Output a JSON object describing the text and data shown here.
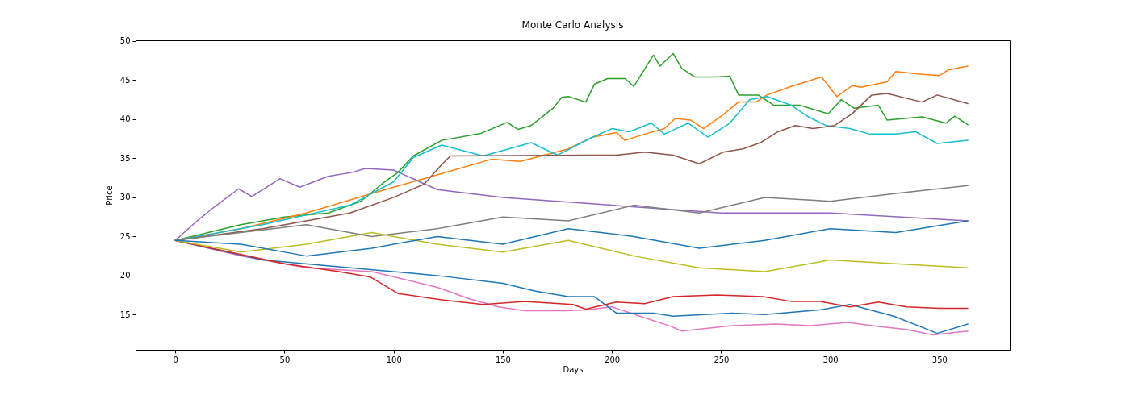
{
  "chart_data": {
    "type": "line",
    "title": "Monte Carlo Analysis",
    "xlabel": "Days",
    "ylabel": "Price",
    "xlim": [
      -18.2,
      382.2
    ],
    "xticks": [
      0,
      50,
      100,
      150,
      200,
      250,
      300,
      350
    ],
    "ylim": [
      10.5,
      50.1
    ],
    "yticks": [
      15,
      20,
      25,
      30,
      35,
      40,
      45,
      50
    ],
    "grid": false,
    "legend": false,
    "series": [
      {
        "color": "#2ca02c",
        "x": [
          0,
          15,
          30,
          50,
          70,
          85,
          95,
          102,
          109,
          122,
          140,
          152,
          157,
          163,
          173,
          177,
          180,
          188,
          192,
          198,
          206,
          210,
          219,
          222,
          228,
          232,
          238,
          248,
          254,
          258,
          267,
          274,
          286,
          299,
          305,
          311,
          322,
          326,
          342,
          353,
          357,
          363
        ],
        "values": [
          24.5,
          25.5,
          26.5,
          27.5,
          28,
          29.5,
          31.8,
          33.2,
          35.3,
          37.3,
          38.2,
          39.6,
          38.7,
          39.2,
          41.4,
          42.8,
          42.9,
          42.2,
          44.5,
          45.2,
          45.2,
          44.2,
          48.2,
          46.8,
          48.4,
          46.5,
          45.4,
          45.4,
          45.5,
          43.1,
          43.1,
          41.8,
          41.8,
          40.7,
          42.5,
          41.4,
          41.8,
          39.9,
          40.3,
          39.5,
          40.4,
          39.3
        ]
      },
      {
        "color": "#ff7f0e",
        "x": [
          0,
          30,
          60,
          90,
          115,
          145,
          158,
          180,
          191,
          202,
          206,
          215,
          224,
          229,
          236,
          242,
          250,
          258,
          266,
          271,
          282,
          296,
          303,
          310,
          314,
          326,
          330,
          340,
          350,
          354,
          363
        ],
        "values": [
          24.5,
          26,
          28,
          30.5,
          32.5,
          34.9,
          34.6,
          36.2,
          37.7,
          38.3,
          37.3,
          38.1,
          38.8,
          40.1,
          39.9,
          38.8,
          40.4,
          42.2,
          42.2,
          43.1,
          44.2,
          45.4,
          42.9,
          44.3,
          44.1,
          44.8,
          46.1,
          45.8,
          45.6,
          46.3,
          46.8
        ]
      },
      {
        "color": "#e377c2",
        "x": [
          0,
          30,
          60,
          90,
          120,
          135,
          148,
          160,
          179,
          188,
          200,
          215,
          227,
          232,
          255,
          275,
          291,
          308,
          322,
          335,
          347,
          363
        ],
        "values": [
          24.5,
          22.5,
          21,
          20.5,
          18.5,
          17,
          16,
          15.5,
          15.5,
          15.6,
          16,
          14.6,
          13.5,
          12.9,
          13.6,
          13.8,
          13.6,
          14,
          13.5,
          13.1,
          12.4,
          12.9
        ]
      },
      {
        "color": "#1f77b4",
        "x": [
          0,
          40,
          80,
          120,
          150,
          165,
          180,
          192,
          202,
          219,
          228,
          255,
          270,
          295,
          309,
          329,
          342,
          349,
          363
        ],
        "values": [
          24.5,
          22,
          21,
          20,
          19,
          18,
          17.3,
          17.3,
          15.2,
          15.2,
          14.8,
          15.2,
          15,
          15.6,
          16.3,
          14.8,
          13.4,
          12.6,
          13.8
        ]
      },
      {
        "color": "#d62728",
        "x": [
          0,
          25,
          50,
          75,
          89.5,
          102,
          122,
          141,
          160,
          182,
          188,
          202,
          215,
          228,
          248,
          269,
          282,
          295,
          309,
          322,
          335,
          350,
          363
        ],
        "values": [
          24.5,
          23,
          21.5,
          20.5,
          19.8,
          17.7,
          16.9,
          16.3,
          16.7,
          16.3,
          15.7,
          16.6,
          16.4,
          17.3,
          17.5,
          17.3,
          16.7,
          16.7,
          16,
          16.6,
          16,
          15.8,
          15.8
        ]
      },
      {
        "color": "#9467bd",
        "x": [
          0,
          10,
          17.5,
          29,
          35,
          48,
          57,
          70,
          81,
          87,
          100,
          120,
          150,
          200,
          250,
          300,
          363
        ],
        "values": [
          24.5,
          27,
          28.7,
          31.1,
          30.1,
          32.4,
          31.3,
          32.7,
          33.2,
          33.7,
          33.5,
          31,
          30,
          29,
          28,
          28,
          27
        ]
      },
      {
        "color": "#17becf",
        "x": [
          0,
          40,
          80,
          100,
          109,
          122,
          141,
          163,
          175,
          191,
          200,
          208,
          218,
          224,
          235,
          244,
          254,
          263,
          271,
          282,
          290,
          298,
          309,
          318,
          330,
          339,
          349,
          363
        ],
        "values": [
          24.5,
          26.5,
          29,
          32,
          35.1,
          36.7,
          35.3,
          37,
          35.4,
          37.7,
          38.8,
          38.4,
          39.5,
          38.1,
          39.5,
          37.7,
          39.5,
          42.5,
          42.9,
          41.8,
          40.3,
          39.2,
          38.8,
          38.1,
          38.1,
          38.4,
          36.9,
          37.3
        ]
      },
      {
        "color": "#8c564b",
        "x": [
          0,
          40,
          80,
          100,
          114,
          122,
          126,
          188,
          202,
          215,
          228,
          240,
          251,
          260,
          268,
          276,
          284,
          292,
          302,
          310,
          319,
          326,
          342,
          349,
          363
        ],
        "values": [
          24.5,
          26,
          28,
          30,
          31.7,
          34.2,
          35.3,
          35.4,
          35.4,
          35.8,
          35.4,
          34.3,
          35.8,
          36.2,
          37,
          38.4,
          39.2,
          38.8,
          39.2,
          40.7,
          43.1,
          43.3,
          42.2,
          43.1,
          42
        ]
      },
      {
        "color": "#bcbd22",
        "x": [
          0,
          30,
          60,
          90,
          120,
          150,
          180,
          210,
          240,
          270,
          300,
          330,
          363
        ],
        "values": [
          24.5,
          23,
          24,
          25.5,
          24,
          23,
          24.5,
          22.5,
          21,
          20.5,
          22,
          21.5,
          21
        ]
      },
      {
        "color": "#7f7f7f",
        "x": [
          0,
          30,
          60,
          90,
          120,
          150,
          180,
          210,
          240,
          270,
          300,
          330,
          363
        ],
        "values": [
          24.5,
          25.5,
          26.5,
          25,
          26,
          27.5,
          27,
          29,
          28,
          30,
          29.5,
          30.5,
          31.5
        ]
      },
      {
        "color": "#1f77b4",
        "x": [
          0,
          30,
          60,
          90,
          120,
          150,
          180,
          210,
          240,
          270,
          300,
          330,
          363
        ],
        "values": [
          24.5,
          24,
          22.5,
          23.5,
          25,
          24,
          26,
          25,
          23.5,
          24.5,
          26,
          25.5,
          27
        ]
      }
    ]
  }
}
